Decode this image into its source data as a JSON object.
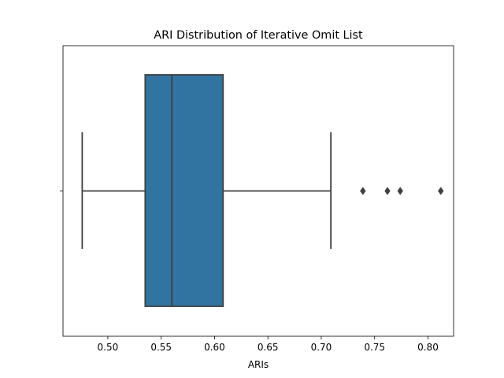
{
  "chart_data": {
    "type": "box",
    "title": "ARI Distribution of Iterative Omit List",
    "xlabel": "ARIs",
    "ylabel": "",
    "orientation": "horizontal",
    "xlim": [
      0.458,
      0.824
    ],
    "xticks": [
      0.5,
      0.55,
      0.6,
      0.65,
      0.7,
      0.75,
      0.8
    ],
    "xtick_labels": [
      "0.50",
      "0.55",
      "0.60",
      "0.65",
      "0.70",
      "0.75",
      "0.80"
    ],
    "box": {
      "whisker_low": 0.476,
      "q1": 0.535,
      "median": 0.56,
      "q3": 0.608,
      "whisker_high": 0.709,
      "outliers": [
        0.739,
        0.762,
        0.774,
        0.812
      ]
    },
    "colors": {
      "box_fill": "#3274a1",
      "line": "#3f3f3f",
      "axis": "#000000"
    },
    "grid": false,
    "legend": "none"
  }
}
